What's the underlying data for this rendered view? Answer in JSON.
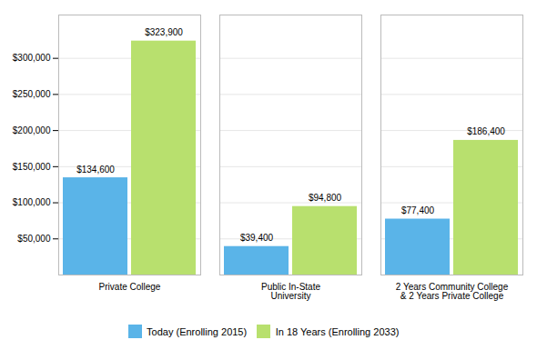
{
  "chart_data": {
    "type": "bar",
    "categories": [
      "Private College",
      "Public In-State\nUniversity",
      "2 Years Community College\n& 2 Years Private College"
    ],
    "series": [
      {
        "name": "Today (Enrolling 2015)",
        "color": "#5ab4e8",
        "values": [
          134600,
          39400,
          77400
        ],
        "value_labels": [
          "$134,600",
          "$39,400",
          "$77,400"
        ]
      },
      {
        "name": "In 18 Years (Enrolling 2033)",
        "color": "#b8e06e",
        "values": [
          323900,
          94800,
          186400
        ],
        "value_labels": [
          "$323,900",
          "$94,800",
          "$186,400"
        ]
      }
    ],
    "ylim": [
      0,
      360000
    ],
    "yticks": [
      {
        "value": 50000,
        "label": "$50,000"
      },
      {
        "value": 100000,
        "label": "$100,000"
      },
      {
        "value": 150000,
        "label": "$150,000"
      },
      {
        "value": 200000,
        "label": "$200,000"
      },
      {
        "value": 250000,
        "label": "$250,000"
      },
      {
        "value": 300000,
        "label": "$300,000"
      }
    ],
    "grid": true,
    "legend": "bottom",
    "data_labels": true
  }
}
